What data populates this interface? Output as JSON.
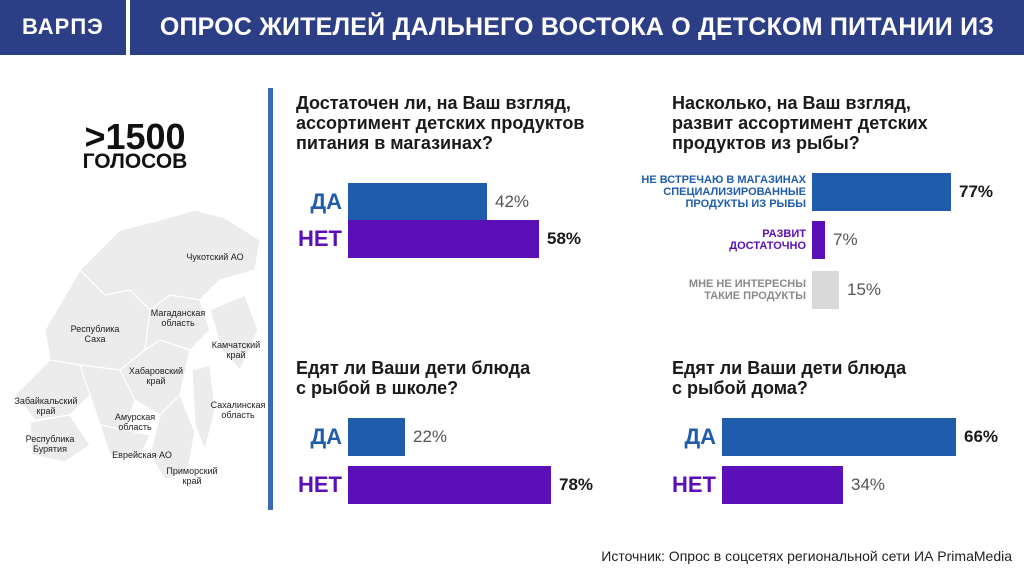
{
  "header": {
    "logo": "ВАРПЭ",
    "title": "ОПРОС ЖИТЕЛЕЙ ДАЛЬНЕГО ВОСТОКА О ДЕТСКОМ ПИТАНИИ ИЗ РЫБЫ"
  },
  "votes": {
    "number": ">1500",
    "label": "ГОЛОСОВ"
  },
  "map": {
    "regions": [
      {
        "name": "Чукотский АО",
        "lines": [
          "Чукотский АО"
        ]
      },
      {
        "name": "Магаданская область",
        "lines": [
          "Магаданская",
          "область"
        ]
      },
      {
        "name": "Республика Саха",
        "lines": [
          "Республика",
          "Саха"
        ]
      },
      {
        "name": "Камчатский край",
        "lines": [
          "Камчатский",
          "край"
        ]
      },
      {
        "name": "Хабаровский край",
        "lines": [
          "Хабаровский",
          "край"
        ]
      },
      {
        "name": "Забайкальский край",
        "lines": [
          "Забайкальский",
          "край"
        ]
      },
      {
        "name": "Амурская область",
        "lines": [
          "Амурская",
          "область"
        ]
      },
      {
        "name": "Сахалинская область",
        "lines": [
          "Сахалинская",
          "область"
        ]
      },
      {
        "name": "Республика Бурятия",
        "lines": [
          "Республика",
          "Бурятия"
        ]
      },
      {
        "name": "Еврейская АО",
        "lines": [
          "Еврейская АО"
        ]
      },
      {
        "name": "Приморский край",
        "lines": [
          "Приморский",
          "край"
        ]
      }
    ]
  },
  "colors": {
    "blue": "#1f5dac",
    "purple": "#5a0fb8",
    "gray": "#d9d9d9",
    "divider": "#3d69b6",
    "header": "#2c3e86"
  },
  "chart_data": [
    {
      "type": "bar",
      "title_lines": [
        "Достаточен ли, на Ваш взгляд,",
        "ассортимент детских продуктов",
        "питания в магазинах?"
      ],
      "categories": [
        "ДА",
        "НЕТ"
      ],
      "values": [
        42,
        58
      ],
      "value_labels": [
        "42%",
        "58%"
      ]
    },
    {
      "type": "bar",
      "title_lines": [
        "Насколько, на Ваш взгляд,",
        "развит ассортимент детских",
        "продуктов из рыбы?"
      ],
      "categories": [
        "НЕ ВСТРЕЧАЮ В МАГАЗИНАХ СПЕЦИАЛИЗИРОВАННЫЕ ПРОДУКТЫ ИЗ РЫБЫ",
        "РАЗВИТ ДОСТАТОЧНО",
        "МНЕ НЕ ИНТЕРЕСНЫ ТАКИЕ ПРОДУКТЫ"
      ],
      "category_lines": [
        [
          "НЕ ВСТРЕЧАЮ В МАГАЗИНАХ",
          "СПЕЦИАЛИЗИРОВАННЫЕ",
          "ПРОДУКТЫ ИЗ РЫБЫ"
        ],
        [
          "РАЗВИТ",
          "ДОСТАТОЧНО"
        ],
        [
          "МНЕ НЕ ИНТЕРЕСНЫ",
          "ТАКИЕ ПРОДУКТЫ"
        ]
      ],
      "values": [
        77,
        7,
        15
      ],
      "value_labels": [
        "77%",
        "7%",
        "15%"
      ]
    },
    {
      "type": "bar",
      "title_lines": [
        "Едят ли Ваши дети блюда",
        "с рыбой в школе?"
      ],
      "categories": [
        "ДА",
        "НЕТ"
      ],
      "values": [
        22,
        78
      ],
      "value_labels": [
        "22%",
        "78%"
      ]
    },
    {
      "type": "bar",
      "title_lines": [
        "Едят ли Ваши дети блюда",
        "с рыбой дома?"
      ],
      "categories": [
        "ДА",
        "НЕТ"
      ],
      "values": [
        66,
        34
      ],
      "value_labels": [
        "66%",
        "34%"
      ]
    }
  ],
  "source": "Источник: Опрос в соцсетях региональной сети ИА PrimaMedia"
}
